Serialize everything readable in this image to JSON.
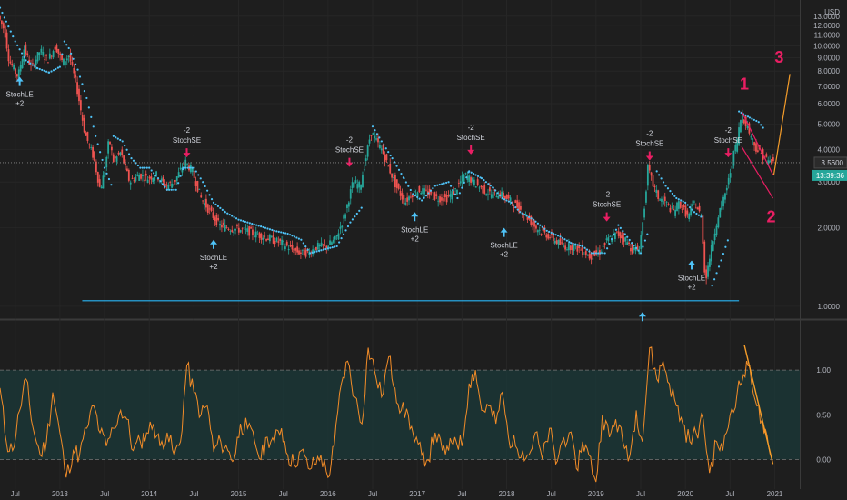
{
  "chart_data": [
    {
      "type": "candlestick",
      "currency": "USD",
      "yscale": "log",
      "ylim": [
        0.9,
        15.0
      ],
      "y_ticks": [
        1,
        2,
        3,
        4,
        5,
        6,
        7,
        8,
        9,
        10,
        11,
        12,
        13
      ],
      "y_tick_labels": [
        "1.0000",
        "2.0000",
        "3.0000",
        "4.0000",
        "5.0000",
        "6.0000",
        "7.0000",
        "8.0000",
        "9.0000",
        "10.0000",
        "11.0000",
        "12.0000",
        "13.0000"
      ],
      "x_tick_labels": [
        "Jul",
        "2013",
        "Jul",
        "2014",
        "Jul",
        "2015",
        "Jul",
        "2016",
        "Jul",
        "2017",
        "Jul",
        "2018",
        "Jul",
        "2019",
        "Jul",
        "2020",
        "Jul",
        "2021"
      ],
      "x_ticks": [
        2012.5,
        2013,
        2013.5,
        2014,
        2014.5,
        2015,
        2015.5,
        2016,
        2016.5,
        2017,
        2017.5,
        2018,
        2018.5,
        2019,
        2019.5,
        2020,
        2020.5,
        2021
      ],
      "xlim": [
        2012.33,
        2021.28
      ],
      "price_path": [
        [
          2012.33,
          13.0
        ],
        [
          2012.4,
          11.5
        ],
        [
          2012.45,
          8.8
        ],
        [
          2012.55,
          7.6
        ],
        [
          2012.62,
          9.8
        ],
        [
          2012.7,
          8.2
        ],
        [
          2012.8,
          9.6
        ],
        [
          2012.88,
          8.8
        ],
        [
          2012.97,
          10.0
        ],
        [
          2013.05,
          8.6
        ],
        [
          2013.12,
          9.2
        ],
        [
          2013.2,
          7.2
        ],
        [
          2013.3,
          4.6
        ],
        [
          2013.4,
          3.7
        ],
        [
          2013.47,
          2.8
        ],
        [
          2013.52,
          3.3
        ],
        [
          2013.57,
          4.4
        ],
        [
          2013.62,
          3.6
        ],
        [
          2013.7,
          3.9
        ],
        [
          2013.8,
          3.0
        ],
        [
          2013.9,
          3.2
        ],
        [
          2014.0,
          3.1
        ],
        [
          2014.1,
          3.2
        ],
        [
          2014.2,
          2.9
        ],
        [
          2014.3,
          3.0
        ],
        [
          2014.42,
          3.6
        ],
        [
          2014.5,
          3.3
        ],
        [
          2014.6,
          2.6
        ],
        [
          2014.7,
          2.3
        ],
        [
          2014.8,
          2.05
        ],
        [
          2014.9,
          2.0
        ],
        [
          2015.1,
          1.95
        ],
        [
          2015.3,
          1.85
        ],
        [
          2015.5,
          1.75
        ],
        [
          2015.62,
          1.65
        ],
        [
          2015.72,
          1.6
        ],
        [
          2015.8,
          1.6
        ],
        [
          2015.9,
          1.7
        ],
        [
          2016.0,
          1.7
        ],
        [
          2016.1,
          1.8
        ],
        [
          2016.2,
          2.2
        ],
        [
          2016.3,
          3.0
        ],
        [
          2016.38,
          2.9
        ],
        [
          2016.45,
          3.8
        ],
        [
          2016.5,
          4.7
        ],
        [
          2016.56,
          4.3
        ],
        [
          2016.62,
          4.0
        ],
        [
          2016.7,
          3.4
        ],
        [
          2016.78,
          2.9
        ],
        [
          2016.88,
          2.5
        ],
        [
          2016.95,
          2.7
        ],
        [
          2017.05,
          2.8
        ],
        [
          2017.15,
          2.7
        ],
        [
          2017.25,
          2.6
        ],
        [
          2017.35,
          2.6
        ],
        [
          2017.45,
          2.8
        ],
        [
          2017.55,
          3.2
        ],
        [
          2017.65,
          3.0
        ],
        [
          2017.75,
          2.8
        ],
        [
          2017.85,
          2.7
        ],
        [
          2017.95,
          2.7
        ],
        [
          2018.05,
          2.55
        ],
        [
          2018.15,
          2.4
        ],
        [
          2018.25,
          2.2
        ],
        [
          2018.35,
          2.0
        ],
        [
          2018.45,
          1.9
        ],
        [
          2018.55,
          1.8
        ],
        [
          2018.65,
          1.7
        ],
        [
          2018.75,
          1.7
        ],
        [
          2018.85,
          1.65
        ],
        [
          2018.95,
          1.55
        ],
        [
          2019.05,
          1.6
        ],
        [
          2019.15,
          1.8
        ],
        [
          2019.25,
          1.9
        ],
        [
          2019.35,
          1.8
        ],
        [
          2019.42,
          1.65
        ],
        [
          2019.5,
          1.65
        ],
        [
          2019.55,
          2.2
        ],
        [
          2019.6,
          3.4
        ],
        [
          2019.66,
          2.9
        ],
        [
          2019.72,
          2.6
        ],
        [
          2019.8,
          2.5
        ],
        [
          2019.88,
          2.3
        ],
        [
          2019.95,
          2.5
        ],
        [
          2020.05,
          2.2
        ],
        [
          2020.12,
          2.5
        ],
        [
          2020.2,
          2.2
        ],
        [
          2020.24,
          1.25
        ],
        [
          2020.3,
          1.6
        ],
        [
          2020.38,
          2.2
        ],
        [
          2020.45,
          2.6
        ],
        [
          2020.5,
          3.0
        ],
        [
          2020.55,
          3.7
        ],
        [
          2020.6,
          4.4
        ],
        [
          2020.65,
          5.5
        ],
        [
          2020.72,
          4.8
        ],
        [
          2020.8,
          4.1
        ],
        [
          2020.88,
          3.8
        ],
        [
          2020.95,
          3.6
        ],
        [
          2021.0,
          3.56
        ]
      ],
      "parabolic_sar": [
        [
          2012.33,
          14.0
        ],
        [
          2012.4,
          12.4
        ],
        [
          2012.5,
          10.4
        ],
        [
          2012.62,
          8.8
        ],
        [
          2012.75,
          8.2
        ],
        [
          2012.88,
          7.9
        ],
        [
          2013.0,
          8.3
        ],
        [
          2013.05,
          10.4
        ],
        [
          2013.1,
          9.8
        ],
        [
          2013.2,
          8.1
        ],
        [
          2013.3,
          6.3
        ],
        [
          2013.4,
          4.5
        ],
        [
          2013.5,
          3.4
        ],
        [
          2013.58,
          2.9
        ],
        [
          2013.6,
          4.5
        ],
        [
          2013.7,
          4.3
        ],
        [
          2013.8,
          3.7
        ],
        [
          2013.9,
          3.4
        ],
        [
          2014.0,
          3.4
        ],
        [
          2014.1,
          3.1
        ],
        [
          2014.2,
          2.8
        ],
        [
          2014.3,
          2.8
        ],
        [
          2014.38,
          3.4
        ],
        [
          2014.5,
          3.4
        ],
        [
          2014.6,
          3.0
        ],
        [
          2014.72,
          2.5
        ],
        [
          2014.85,
          2.3
        ],
        [
          2015.0,
          2.15
        ],
        [
          2015.2,
          2.05
        ],
        [
          2015.4,
          1.95
        ],
        [
          2015.55,
          1.9
        ],
        [
          2015.7,
          1.8
        ],
        [
          2015.8,
          1.6
        ],
        [
          2015.95,
          1.65
        ],
        [
          2016.1,
          1.7
        ],
        [
          2016.25,
          2.1
        ],
        [
          2016.38,
          2.4
        ],
        [
          2016.5,
          4.9
        ],
        [
          2016.6,
          4.3
        ],
        [
          2016.72,
          3.7
        ],
        [
          2016.85,
          3.1
        ],
        [
          2016.95,
          2.7
        ],
        [
          2017.05,
          2.55
        ],
        [
          2017.2,
          2.9
        ],
        [
          2017.35,
          3.0
        ],
        [
          2017.45,
          2.6
        ],
        [
          2017.58,
          3.3
        ],
        [
          2017.72,
          3.1
        ],
        [
          2017.85,
          2.85
        ],
        [
          2017.95,
          2.6
        ],
        [
          2018.05,
          2.5
        ],
        [
          2018.15,
          2.3
        ],
        [
          2018.3,
          2.15
        ],
        [
          2018.45,
          1.95
        ],
        [
          2018.6,
          1.85
        ],
        [
          2018.72,
          1.75
        ],
        [
          2018.85,
          1.7
        ],
        [
          2018.95,
          1.6
        ],
        [
          2019.1,
          1.6
        ],
        [
          2019.25,
          2.05
        ],
        [
          2019.4,
          1.75
        ],
        [
          2019.5,
          1.6
        ],
        [
          2019.6,
          2.0
        ],
        [
          2019.68,
          3.3
        ],
        [
          2019.78,
          2.9
        ],
        [
          2019.9,
          2.6
        ],
        [
          2020.0,
          2.5
        ],
        [
          2020.1,
          2.3
        ],
        [
          2020.18,
          2.2
        ],
        [
          2020.3,
          1.2
        ],
        [
          2020.4,
          1.5
        ],
        [
          2020.5,
          1.9
        ],
        [
          2020.6,
          5.6
        ],
        [
          2020.72,
          5.3
        ],
        [
          2020.82,
          5.1
        ],
        [
          2020.88,
          4.8
        ]
      ],
      "current_price": {
        "value": 3.56,
        "label": "3.5600",
        "countdown": "13:39:36"
      },
      "support_line": {
        "x": [
          2013.25,
          2020.6
        ],
        "y": [
          1.05,
          1.05
        ]
      },
      "wedge_upper": {
        "x": [
          2020.63,
          2020.98
        ],
        "y": [
          5.6,
          3.2
        ]
      },
      "wedge_lower": {
        "x": [
          2020.63,
          2020.98
        ],
        "y": [
          4.1,
          2.6
        ]
      },
      "projection": {
        "x": [
          2020.99,
          2021.17
        ],
        "y": [
          3.2,
          7.8
        ]
      },
      "wave_labels": [
        {
          "text": "1",
          "x": 2020.66,
          "y": 6.8
        },
        {
          "text": "2",
          "x": 2020.96,
          "y": 2.1
        },
        {
          "text": "3",
          "x": 2021.05,
          "y": 8.6
        }
      ],
      "signals": [
        {
          "kind": "StochLE",
          "count": "+2",
          "x": 2012.55,
          "y": 7.6
        },
        {
          "kind": "StochSE",
          "count": "-2",
          "x": 2014.42,
          "y": 3.7
        },
        {
          "kind": "StochLE",
          "count": "+2",
          "x": 2014.72,
          "y": 1.8
        },
        {
          "kind": "StochSE",
          "count": "-2",
          "x": 2016.24,
          "y": 3.4
        },
        {
          "kind": "StochLE",
          "count": "+2",
          "x": 2016.97,
          "y": 2.3
        },
        {
          "kind": "StochSE",
          "count": "-2",
          "x": 2017.6,
          "y": 3.8
        },
        {
          "kind": "StochLE",
          "count": "+2",
          "x": 2017.97,
          "y": 2.0
        },
        {
          "kind": "StochSE",
          "count": "-2",
          "x": 2019.12,
          "y": 2.1
        },
        {
          "kind": "StochLE",
          "count": "",
          "x": 2019.52,
          "y": 0.95
        },
        {
          "kind": "StochSE",
          "count": "-2",
          "x": 2019.6,
          "y": 3.6
        },
        {
          "kind": "StochLE",
          "count": "+2",
          "x": 2020.07,
          "y": 1.5
        },
        {
          "kind": "StochSE",
          "count": "-2",
          "x": 2020.48,
          "y": 3.7
        }
      ]
    },
    {
      "type": "line",
      "ylim": [
        -0.3,
        1.55
      ],
      "y_ticks": [
        0,
        0.5,
        1
      ],
      "y_tick_labels": [
        "0.00",
        "0.50",
        "1.00"
      ],
      "band": [
        0,
        1
      ],
      "color": "#f28c28",
      "x": [
        2012.33,
        2012.4,
        2012.47,
        2012.55,
        2012.62,
        2012.7,
        2012.78,
        2012.85,
        2012.92,
        2013.0,
        2013.07,
        2013.15,
        2013.22,
        2013.3,
        2013.38,
        2013.45,
        2013.52,
        2013.6,
        2013.68,
        2013.75,
        2013.82,
        2013.9,
        2013.97,
        2014.05,
        2014.12,
        2014.2,
        2014.28,
        2014.35,
        2014.42,
        2014.5,
        2014.58,
        2014.65,
        2014.72,
        2014.8,
        2014.88,
        2014.95,
        2015.02,
        2015.1,
        2015.18,
        2015.25,
        2015.32,
        2015.4,
        2015.48,
        2015.55,
        2015.62,
        2015.7,
        2015.78,
        2015.85,
        2015.92,
        2016.0,
        2016.07,
        2016.15,
        2016.22,
        2016.3,
        2016.38,
        2016.45,
        2016.52,
        2016.6,
        2016.68,
        2016.75,
        2016.82,
        2016.9,
        2016.97,
        2017.05,
        2017.12,
        2017.2,
        2017.28,
        2017.35,
        2017.42,
        2017.5,
        2017.58,
        2017.65,
        2017.72,
        2017.8,
        2017.88,
        2017.95,
        2018.02,
        2018.1,
        2018.18,
        2018.25,
        2018.32,
        2018.4,
        2018.48,
        2018.55,
        2018.62,
        2018.7,
        2018.78,
        2018.85,
        2018.92,
        2019.0,
        2019.07,
        2019.15,
        2019.22,
        2019.3,
        2019.38,
        2019.45,
        2019.52,
        2019.6,
        2019.68,
        2019.75,
        2019.82,
        2019.9,
        2019.97,
        2020.05,
        2020.12,
        2020.2,
        2020.27,
        2020.35,
        2020.42,
        2020.5,
        2020.58,
        2020.65,
        2020.72,
        2020.8,
        2020.88,
        2020.95
      ],
      "values": [
        0.8,
        0.2,
        0.1,
        0.55,
        0.9,
        0.35,
        0.05,
        0.2,
        0.75,
        0.3,
        -0.2,
        0.1,
        0.05,
        0.35,
        0.6,
        0.3,
        0.15,
        0.35,
        0.55,
        0.45,
        0.1,
        0.2,
        0.3,
        0.4,
        0.15,
        0.3,
        0.05,
        0.2,
        1.05,
        0.75,
        0.5,
        0.6,
        0.1,
        0.2,
        0.1,
        0.0,
        0.4,
        0.35,
        0.2,
        0.0,
        0.25,
        0.2,
        0.35,
        0.05,
        -0.05,
        0.1,
        -0.1,
        -0.05,
        0.05,
        -0.2,
        0.15,
        0.85,
        1.1,
        0.7,
        0.4,
        1.25,
        1.0,
        0.7,
        1.15,
        0.8,
        0.55,
        0.5,
        0.2,
        0.05,
        0.0,
        0.3,
        0.1,
        0.1,
        0.25,
        0.15,
        0.85,
        1.0,
        0.55,
        0.6,
        0.4,
        0.75,
        0.25,
        0.15,
        0.1,
        0.05,
        0.3,
        0.0,
        0.35,
        -0.05,
        0.2,
        0.3,
        -0.1,
        0.2,
        0.05,
        -0.25,
        0.5,
        0.25,
        0.45,
        0.2,
        0.05,
        0.55,
        0.2,
        1.25,
        0.9,
        1.1,
        0.85,
        0.6,
        0.4,
        0.2,
        0.3,
        0.45,
        -0.15,
        0.2,
        0.1,
        0.5,
        0.75,
        0.95,
        1.05,
        0.6,
        0.3,
        0.05
      ],
      "trend_line": {
        "x": [
          2020.66,
          2020.98
        ],
        "y": [
          1.28,
          -0.05
        ]
      }
    }
  ]
}
